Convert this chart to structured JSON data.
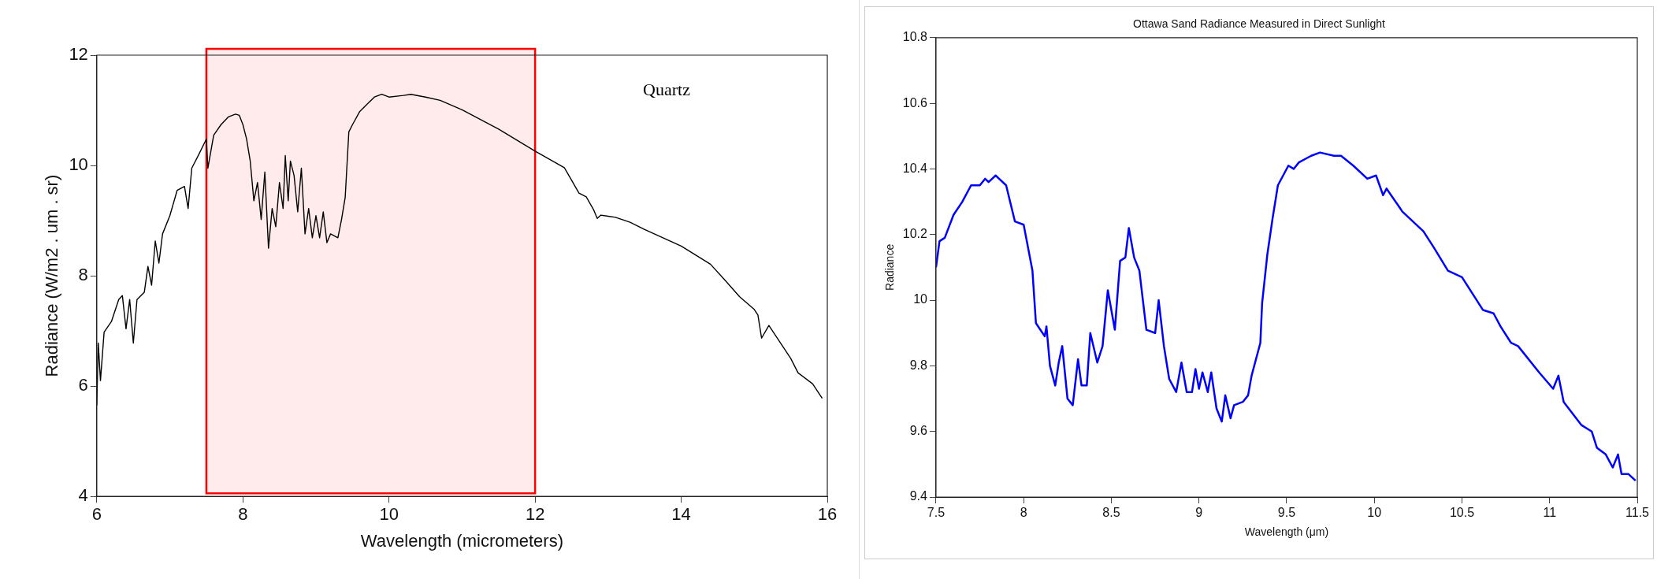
{
  "chart_data": [
    {
      "type": "line",
      "xlabel": "Wavelength (micrometers)",
      "ylabel": "Radiance (W/m2 . um . sr)",
      "xlim": [
        6,
        16
      ],
      "ylim": [
        4,
        12
      ],
      "xticks": [
        6,
        8,
        10,
        12,
        14,
        16
      ],
      "yticks": [
        4,
        6,
        8,
        10,
        12
      ],
      "annotations": [
        "Quartz"
      ],
      "bands": [
        {
          "axis": "x",
          "from": 7.5,
          "to": 12,
          "color": "#ff0000"
        }
      ],
      "series": [
        {
          "color": "#000000",
          "x": [
            6.0,
            6.02,
            6.05,
            6.1,
            6.2,
            6.3,
            6.35,
            6.4,
            6.45,
            6.5,
            6.55,
            6.65,
            6.7,
            6.75,
            6.8,
            6.85,
            6.9,
            7.0,
            7.1,
            7.2,
            7.25,
            7.3,
            7.4,
            7.5,
            7.52,
            7.6,
            7.7,
            7.8,
            7.9,
            7.95,
            8.0,
            8.05,
            8.1,
            8.15,
            8.2,
            8.25,
            8.3,
            8.35,
            8.4,
            8.45,
            8.5,
            8.55,
            8.58,
            8.62,
            8.65,
            8.7,
            8.75,
            8.8,
            8.85,
            8.9,
            8.95,
            9.0,
            9.05,
            9.1,
            9.15,
            9.2,
            9.3,
            9.35,
            9.4,
            9.45,
            9.5,
            9.6,
            9.7,
            9.8,
            9.9,
            10.0,
            10.2,
            10.3,
            10.5,
            10.7,
            11.0,
            11.5,
            12.0,
            12.4,
            12.5,
            12.6,
            12.7,
            12.8,
            12.85,
            12.9,
            13.0,
            13.1,
            13.3,
            13.5,
            14.0,
            14.4,
            14.6,
            14.8,
            15.0,
            15.05,
            15.1,
            15.2,
            15.3,
            15.4,
            15.5,
            15.6,
            15.8,
            15.93
          ],
          "values": [
            5.65,
            6.78,
            6.1,
            6.98,
            7.17,
            7.57,
            7.64,
            7.04,
            7.57,
            6.78,
            7.57,
            7.7,
            8.17,
            7.83,
            8.63,
            8.23,
            8.76,
            9.09,
            9.55,
            9.62,
            9.22,
            9.95,
            10.21,
            10.48,
            9.95,
            10.55,
            10.74,
            10.88,
            10.93,
            10.91,
            10.74,
            10.48,
            10.08,
            9.36,
            9.69,
            9.02,
            9.88,
            8.5,
            9.22,
            8.89,
            9.69,
            9.22,
            10.18,
            9.36,
            10.08,
            9.82,
            9.16,
            9.95,
            8.76,
            9.22,
            8.69,
            9.09,
            8.69,
            9.16,
            8.6,
            8.76,
            8.69,
            9.02,
            9.42,
            10.61,
            10.74,
            10.98,
            11.11,
            11.24,
            11.29,
            11.24,
            11.27,
            11.29,
            11.24,
            11.18,
            11.01,
            10.66,
            10.26,
            9.96,
            9.73,
            9.5,
            9.43,
            9.2,
            9.04,
            9.1,
            9.08,
            9.06,
            8.97,
            8.84,
            8.54,
            8.21,
            7.92,
            7.62,
            7.39,
            7.29,
            6.87,
            7.1,
            6.9,
            6.7,
            6.5,
            6.24,
            6.04,
            5.78
          ]
        }
      ]
    },
    {
      "type": "line",
      "title": "Ottawa Sand Radiance Measured in Direct Sunlight",
      "xlabel": "Wavelength (μm)",
      "ylabel": "Radiance",
      "xlim": [
        7.5,
        11.5
      ],
      "ylim": [
        9.4,
        10.8
      ],
      "xticks": [
        7.5,
        8,
        8.5,
        9,
        9.5,
        10,
        10.5,
        11,
        11.5
      ],
      "yticks": [
        9.4,
        9.6,
        9.8,
        10,
        10.2,
        10.4,
        10.6,
        10.8
      ],
      "series": [
        {
          "color": "#0000ff",
          "x": [
            7.5,
            7.52,
            7.55,
            7.6,
            7.65,
            7.7,
            7.75,
            7.78,
            7.8,
            7.84,
            7.9,
            7.95,
            8.0,
            8.05,
            8.07,
            8.12,
            8.13,
            8.15,
            8.18,
            8.2,
            8.22,
            8.25,
            8.28,
            8.31,
            8.33,
            8.36,
            8.38,
            8.42,
            8.45,
            8.48,
            8.52,
            8.55,
            8.58,
            8.6,
            8.63,
            8.66,
            8.7,
            8.75,
            8.77,
            8.8,
            8.83,
            8.87,
            8.9,
            8.93,
            8.96,
            8.98,
            9.0,
            9.02,
            9.05,
            9.07,
            9.1,
            9.13,
            9.15,
            9.18,
            9.2,
            9.25,
            9.28,
            9.3,
            9.35,
            9.36,
            9.39,
            9.42,
            9.45,
            9.51,
            9.54,
            9.57,
            9.64,
            9.69,
            9.77,
            9.81,
            9.88,
            9.96,
            10.01,
            10.05,
            10.07,
            10.16,
            10.28,
            10.34,
            10.42,
            10.5,
            10.62,
            10.68,
            10.72,
            10.78,
            10.82,
            10.94,
            11.02,
            11.05,
            11.08,
            11.18,
            11.24,
            11.27,
            11.32,
            11.36,
            11.39,
            11.41,
            11.45,
            11.49
          ],
          "values": [
            10.1,
            10.18,
            10.19,
            10.26,
            10.3,
            10.35,
            10.35,
            10.37,
            10.36,
            10.38,
            10.35,
            10.24,
            10.23,
            10.09,
            9.93,
            9.89,
            9.92,
            9.8,
            9.74,
            9.81,
            9.86,
            9.7,
            9.68,
            9.82,
            9.74,
            9.74,
            9.9,
            9.81,
            9.86,
            10.03,
            9.91,
            10.12,
            10.13,
            10.22,
            10.13,
            10.09,
            9.91,
            9.9,
            10.0,
            9.86,
            9.76,
            9.72,
            9.81,
            9.72,
            9.72,
            9.79,
            9.73,
            9.78,
            9.72,
            9.78,
            9.67,
            9.63,
            9.71,
            9.64,
            9.68,
            9.69,
            9.71,
            9.77,
            9.87,
            9.99,
            10.14,
            10.25,
            10.35,
            10.41,
            10.4,
            10.42,
            10.44,
            10.45,
            10.44,
            10.44,
            10.41,
            10.37,
            10.38,
            10.32,
            10.34,
            10.27,
            10.21,
            10.16,
            10.09,
            10.07,
            9.97,
            9.96,
            9.92,
            9.87,
            9.86,
            9.78,
            9.73,
            9.77,
            9.69,
            9.62,
            9.6,
            9.55,
            9.53,
            9.49,
            9.53,
            9.47,
            9.47,
            9.45
          ]
        }
      ]
    }
  ]
}
